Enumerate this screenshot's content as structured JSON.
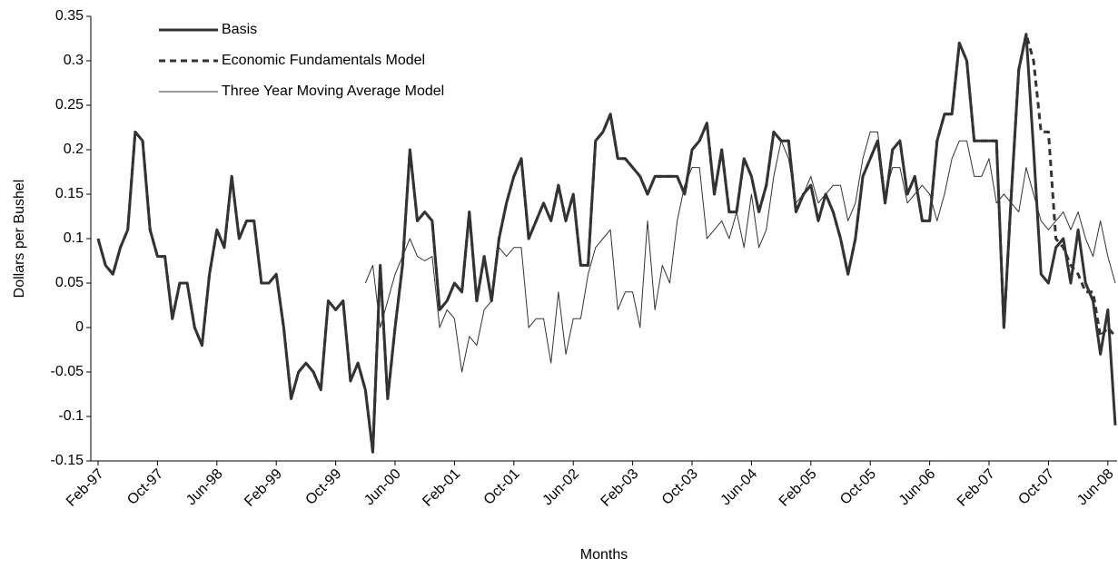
{
  "chart_data": {
    "type": "line",
    "y_label": "Dollars per Bushel",
    "x_label": "Months",
    "categories": [
      "Feb-97",
      null,
      null,
      null,
      null,
      null,
      null,
      null,
      "Oct-97",
      null,
      null,
      null,
      null,
      null,
      null,
      null,
      "Jun-98",
      null,
      null,
      null,
      null,
      null,
      null,
      null,
      "Feb-99",
      null,
      null,
      null,
      null,
      null,
      null,
      null,
      "Oct-99",
      null,
      null,
      null,
      null,
      null,
      null,
      null,
      "Jun-00",
      null,
      null,
      null,
      null,
      null,
      null,
      null,
      "Feb-01",
      null,
      null,
      null,
      null,
      null,
      null,
      null,
      "Oct-01",
      null,
      null,
      null,
      null,
      null,
      null,
      null,
      "Jun-02",
      null,
      null,
      null,
      null,
      null,
      null,
      null,
      "Feb-03",
      null,
      null,
      null,
      null,
      null,
      null,
      null,
      "Oct-03",
      null,
      null,
      null,
      null,
      null,
      null,
      null,
      "Jun-04",
      null,
      null,
      null,
      null,
      null,
      null,
      null,
      "Feb-05",
      null,
      null,
      null,
      null,
      null,
      null,
      null,
      "Oct-05",
      null,
      null,
      null,
      null,
      null,
      null,
      null,
      "Jun-06",
      null,
      null,
      null,
      null,
      null,
      null,
      null,
      "Feb-07",
      null,
      null,
      null,
      null,
      null,
      null,
      null,
      "Oct-07",
      null,
      null,
      null,
      null,
      null,
      null,
      null,
      "Jun-08",
      null
    ],
    "series": [
      {
        "name": "Basis",
        "color": "#333333",
        "linestyle": "thick",
        "values": [
          0.1,
          0.07,
          0.06,
          0.09,
          0.11,
          0.22,
          0.21,
          0.11,
          0.08,
          0.08,
          0.01,
          0.05,
          0.05,
          0.0,
          -0.02,
          0.06,
          0.11,
          0.09,
          0.17,
          0.1,
          0.12,
          0.12,
          0.05,
          0.05,
          0.06,
          0.0,
          -0.08,
          -0.05,
          -0.04,
          -0.05,
          -0.07,
          0.03,
          0.02,
          0.03,
          -0.06,
          -0.04,
          -0.07,
          -0.14,
          0.07,
          -0.08,
          0.0,
          0.07,
          0.2,
          0.12,
          0.13,
          0.12,
          0.02,
          0.03,
          0.05,
          0.04,
          0.13,
          0.03,
          0.08,
          0.03,
          0.1,
          0.14,
          0.17,
          0.19,
          0.1,
          0.12,
          0.14,
          0.12,
          0.16,
          0.12,
          0.15,
          0.07,
          0.07,
          0.21,
          0.22,
          0.24,
          0.19,
          0.19,
          0.18,
          0.17,
          0.15,
          0.17,
          0.17,
          0.17,
          0.17,
          0.15,
          0.2,
          0.21,
          0.23,
          0.15,
          0.2,
          0.13,
          0.13,
          0.19,
          0.17,
          0.13,
          0.16,
          0.22,
          0.21,
          0.21,
          0.13,
          0.15,
          0.16,
          0.12,
          0.15,
          0.13,
          0.1,
          0.06,
          0.1,
          0.17,
          0.19,
          0.21,
          0.14,
          0.2,
          0.21,
          0.15,
          0.17,
          0.12,
          0.12,
          0.21,
          0.24,
          0.24,
          0.32,
          0.3,
          0.21,
          0.21,
          0.21,
          0.21,
          0.0,
          0.15,
          0.29,
          0.33,
          0.2,
          0.06,
          0.05,
          0.09,
          0.1,
          0.05,
          0.11,
          0.05,
          0.03,
          -0.03,
          0.02,
          -0.11
        ]
      },
      {
        "name": "Economic Fundamentals Model",
        "color": "#333333",
        "linestyle": "dashed",
        "values": [
          0.1,
          0.07,
          0.06,
          0.09,
          0.11,
          0.22,
          0.21,
          0.11,
          0.08,
          0.08,
          0.01,
          0.05,
          0.05,
          0.0,
          -0.02,
          0.06,
          0.11,
          0.09,
          0.17,
          0.1,
          0.12,
          0.12,
          0.05,
          0.05,
          0.06,
          0.0,
          -0.08,
          -0.05,
          -0.04,
          -0.05,
          -0.07,
          0.03,
          0.02,
          0.03,
          -0.06,
          -0.04,
          -0.07,
          -0.14,
          0.07,
          -0.08,
          0.0,
          0.07,
          0.2,
          0.12,
          0.13,
          0.12,
          0.02,
          0.03,
          0.05,
          0.04,
          0.13,
          0.03,
          0.08,
          0.03,
          0.1,
          0.14,
          0.17,
          0.19,
          0.1,
          0.12,
          0.14,
          0.12,
          0.16,
          0.12,
          0.15,
          0.07,
          0.07,
          0.21,
          0.22,
          0.24,
          0.19,
          0.19,
          0.18,
          0.17,
          0.15,
          0.17,
          0.17,
          0.17,
          0.17,
          0.15,
          0.2,
          0.21,
          0.23,
          0.15,
          0.2,
          0.13,
          0.13,
          0.19,
          0.17,
          0.13,
          0.16,
          0.22,
          0.21,
          0.21,
          0.13,
          0.15,
          0.16,
          0.12,
          0.15,
          0.13,
          0.1,
          0.06,
          0.1,
          0.17,
          0.19,
          0.21,
          0.14,
          0.2,
          0.21,
          0.15,
          0.17,
          0.12,
          0.12,
          0.21,
          0.24,
          0.24,
          0.32,
          0.3,
          0.21,
          0.21,
          0.21,
          0.21,
          0.0,
          0.15,
          0.29,
          0.33,
          0.3,
          0.22,
          0.22,
          0.1,
          0.09,
          0.07,
          0.06,
          0.04,
          0.04,
          -0.01,
          0.0,
          -0.01
        ]
      },
      {
        "name": "Three Year Moving Average Model",
        "color": "#333333",
        "linestyle": "thin",
        "values": [
          null,
          null,
          null,
          null,
          null,
          null,
          null,
          null,
          null,
          null,
          null,
          null,
          null,
          null,
          null,
          null,
          null,
          null,
          null,
          null,
          null,
          null,
          null,
          null,
          null,
          null,
          null,
          null,
          null,
          null,
          null,
          null,
          null,
          null,
          null,
          null,
          0.05,
          0.07,
          0.0,
          0.03,
          0.06,
          0.08,
          0.1,
          0.08,
          0.075,
          0.08,
          0.0,
          0.02,
          0.01,
          -0.05,
          -0.01,
          -0.02,
          0.02,
          0.03,
          0.09,
          0.08,
          0.09,
          0.09,
          0.0,
          0.01,
          0.01,
          -0.04,
          0.04,
          -0.03,
          0.01,
          0.01,
          0.06,
          0.09,
          0.1,
          0.11,
          0.02,
          0.04,
          0.04,
          0.0,
          0.12,
          0.02,
          0.07,
          0.05,
          0.12,
          0.16,
          0.18,
          0.18,
          0.1,
          0.11,
          0.12,
          0.1,
          0.13,
          0.09,
          0.15,
          0.09,
          0.11,
          0.17,
          0.21,
          0.19,
          0.14,
          0.15,
          0.17,
          0.14,
          0.15,
          0.16,
          0.16,
          0.12,
          0.14,
          0.19,
          0.22,
          0.22,
          0.15,
          0.18,
          0.18,
          0.14,
          0.15,
          0.16,
          0.15,
          0.12,
          0.15,
          0.19,
          0.21,
          0.21,
          0.17,
          0.17,
          0.19,
          0.14,
          0.15,
          0.14,
          0.13,
          0.18,
          0.15,
          0.12,
          0.11,
          0.12,
          0.13,
          0.11,
          0.13,
          0.1,
          0.08,
          0.12,
          0.08,
          0.05
        ]
      }
    ],
    "ylim": [
      -0.15,
      0.35
    ],
    "yticks": [
      -0.15,
      -0.1,
      -0.05,
      0,
      0.05,
      0.1,
      0.15,
      0.2,
      0.25,
      0.3,
      0.35
    ],
    "grid": false
  }
}
